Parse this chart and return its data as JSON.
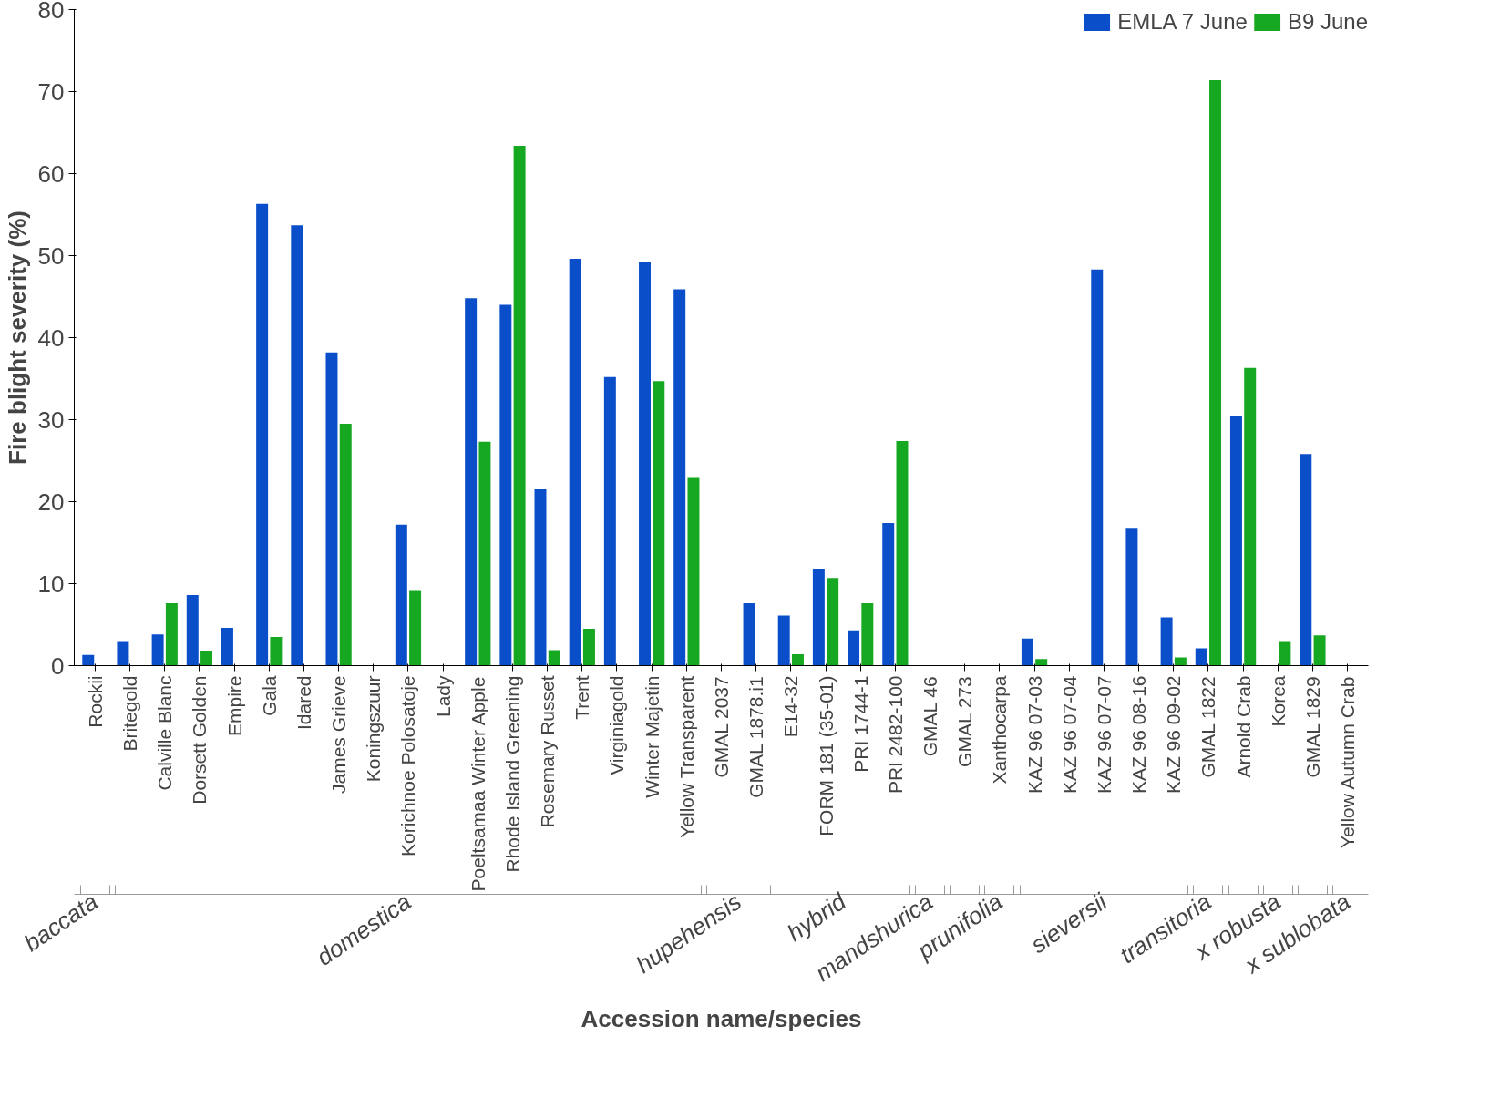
{
  "chart_data": {
    "type": "bar",
    "xlabel": "Accession name/species",
    "ylabel": "Fire blight severity (%)",
    "categories": [
      "Rockii",
      "Britegold",
      "Calville Blanc",
      "Dorsett Golden",
      "Empire",
      "Gala",
      "Idared",
      "James Grieve",
      "Koningszuur",
      "Korichnoe Polosatoje",
      "Lady",
      "Poeltsamaa Winter Apple",
      "Rhode Island Greening",
      "Rosemary Russet",
      "Trent",
      "Virginiagold",
      "Winter Majetin",
      "Yellow Transparent",
      "GMAL 2037",
      "GMAL 1878.i1",
      "E14-32",
      "FORM 181 (35-01)",
      "PRI 1744-1",
      "PRI 2482-100",
      "GMAL 46",
      "GMAL 273",
      "Xanthocarpa",
      "KAZ 96 07-03",
      "KAZ 96 07-04",
      "KAZ 96 07-07",
      "KAZ 96 08-16",
      "KAZ 96 09-02",
      "GMAL 1822",
      "Arnold Crab",
      "Korea",
      "GMAL 1829",
      "Yellow Autumn Crab"
    ],
    "series": [
      {
        "name": "EMLA 7 June",
        "color": "#0a4fc9",
        "values": [
          1.3,
          2.9,
          3.8,
          8.6,
          4.6,
          56.3,
          53.7,
          38.2,
          null,
          17.2,
          null,
          44.8,
          44.0,
          21.5,
          49.6,
          35.2,
          49.2,
          45.9,
          null,
          7.6,
          6.1,
          11.8,
          4.3,
          17.4,
          null,
          null,
          null,
          3.3,
          null,
          48.3,
          16.7,
          5.9,
          2.1,
          30.4,
          null,
          25.8,
          null
        ]
      },
      {
        "name": "B9 June",
        "color": "#17a821",
        "values": [
          null,
          null,
          7.6,
          1.8,
          null,
          3.5,
          null,
          29.5,
          null,
          9.1,
          null,
          27.3,
          63.4,
          1.9,
          4.5,
          null,
          34.7,
          22.9,
          null,
          null,
          1.4,
          10.7,
          7.6,
          27.4,
          null,
          null,
          null,
          0.8,
          null,
          null,
          null,
          1.0,
          71.4,
          36.3,
          2.9,
          3.7,
          null
        ]
      }
    ],
    "annotations": [
      "baccata",
      "domestica",
      "hupehensis",
      "hybrid",
      "mandshurica",
      "prunifolia",
      "sieversii",
      "transitoria",
      "x robusta",
      "x sublobata"
    ],
    "ylim": [
      0,
      80
    ],
    "yticks": [
      0,
      10,
      20,
      30,
      40,
      50,
      60,
      70,
      80
    ],
    "grid": false,
    "legend": "top right"
  }
}
